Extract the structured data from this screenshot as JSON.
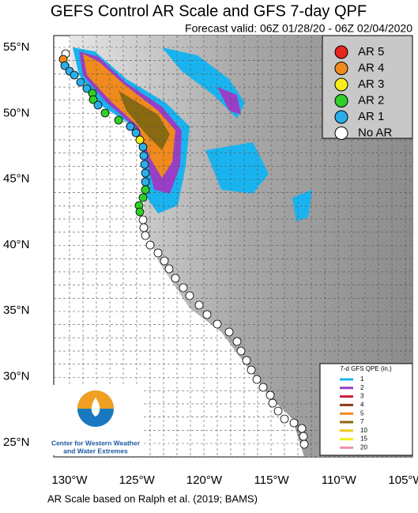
{
  "title": "GEFS Control AR Scale and GFS 7-day QPF",
  "subtitle": "Forecast valid: 06Z 01/28/20 - 06Z 02/04/2020",
  "lat_labels": [
    "55°N",
    "50°N",
    "45°N",
    "40°N",
    "35°N",
    "30°N",
    "25°N"
  ],
  "lon_labels": [
    "130°W",
    "125°W",
    "120°W",
    "115°W",
    "110°W",
    "105°W"
  ],
  "ar_legend": [
    {
      "label": "AR 5",
      "color": "#e8251f"
    },
    {
      "label": "AR 4",
      "color": "#f08a1c"
    },
    {
      "label": "AR 3",
      "color": "#f5ee1a"
    },
    {
      "label": "AR 2",
      "color": "#2fd02a"
    },
    {
      "label": "AR 1",
      "color": "#2aaee8"
    },
    {
      "label": "No AR",
      "color": "#ffffff"
    }
  ],
  "qpe_legend": {
    "title": "7-d GFS QPE (in.)",
    "items": [
      {
        "label": "1",
        "color": "#19b4f0"
      },
      {
        "label": "2",
        "color": "#9a3ec8"
      },
      {
        "label": "3",
        "color": "#c8203a"
      },
      {
        "label": "4",
        "color": "#8a3a10"
      },
      {
        "label": "5",
        "color": "#f08a1c"
      },
      {
        "label": "7",
        "color": "#8a6a10"
      },
      {
        "label": "10",
        "color": "#f0c81a"
      },
      {
        "label": "15",
        "color": "#f5ee1a"
      },
      {
        "label": "20",
        "color": "#f090b0"
      }
    ]
  },
  "logo": {
    "line1": "Center for Western Weather",
    "line2": "and Water Extremes"
  },
  "footer": "AR Scale based on Ralph et al. (2019; BAMS)"
}
